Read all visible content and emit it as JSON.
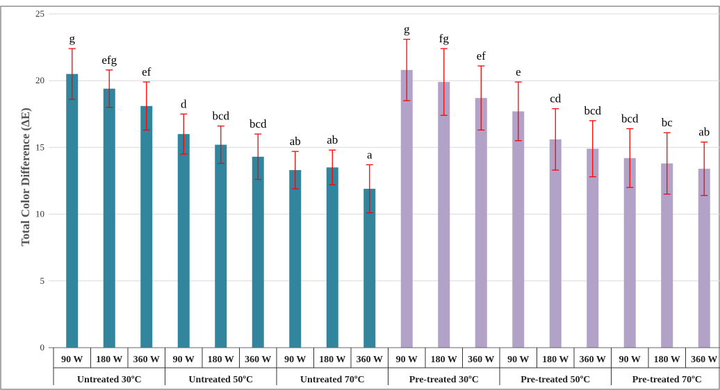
{
  "chart_data": {
    "type": "bar",
    "ylabel": "Total Color Difference (ΔE)",
    "ylim": [
      0,
      25
    ],
    "yticks": [
      0,
      5,
      10,
      15,
      20,
      25
    ],
    "grid": true,
    "colors": {
      "untreated": "#31859c",
      "pretreated": "#b3a2c7",
      "error_bar": "#ff0000"
    },
    "groups": [
      {
        "label": "Untreated 30ºC",
        "color_key": "untreated"
      },
      {
        "label": "Untreated 50ºC",
        "color_key": "untreated"
      },
      {
        "label": "Untreated 70ºC",
        "color_key": "untreated"
      },
      {
        "label": "Pre-treated 30ºC",
        "color_key": "pretreated"
      },
      {
        "label": "Pre-treated 50ºC",
        "color_key": "pretreated"
      },
      {
        "label": "Pre-treated 70ºC",
        "color_key": "pretreated"
      }
    ],
    "categories": [
      "90 W",
      "180 W",
      "360 W",
      "90 W",
      "180 W",
      "360 W",
      "90 W",
      "180 W",
      "360 W",
      "90 W",
      "180 W",
      "360 W",
      "90 W",
      "180 W",
      "360 W",
      "90 W",
      "180 W",
      "360 W"
    ],
    "values": [
      20.5,
      19.4,
      18.1,
      16.0,
      15.2,
      14.3,
      13.3,
      13.5,
      11.9,
      20.8,
      19.9,
      18.7,
      17.7,
      15.6,
      14.9,
      14.2,
      13.8,
      13.4
    ],
    "errors": [
      1.9,
      1.4,
      1.8,
      1.5,
      1.4,
      1.7,
      1.4,
      1.3,
      1.8,
      2.3,
      2.5,
      2.4,
      2.2,
      2.3,
      2.1,
      2.2,
      2.3,
      2.0
    ],
    "significance": [
      "g",
      "efg",
      "ef",
      "d",
      "bcd",
      "bcd",
      "ab",
      "ab",
      "a",
      "g",
      "fg",
      "ef",
      "e",
      "cd",
      "bcd",
      "bcd",
      "bc",
      "ab"
    ]
  }
}
